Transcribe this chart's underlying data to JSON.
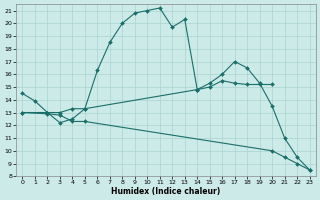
{
  "xlabel": "Humidex (Indice chaleur)",
  "bg_color": "#cceae8",
  "line_color": "#1a6e6a",
  "grid_color": "#aad4d0",
  "xlim": [
    -0.5,
    23.5
  ],
  "ylim": [
    8,
    21.5
  ],
  "xticks": [
    0,
    1,
    2,
    3,
    4,
    5,
    6,
    7,
    8,
    9,
    10,
    11,
    12,
    13,
    14,
    15,
    16,
    17,
    18,
    19,
    20,
    21,
    22,
    23
  ],
  "yticks": [
    8,
    9,
    10,
    11,
    12,
    13,
    14,
    15,
    16,
    17,
    18,
    19,
    20,
    21
  ],
  "series": [
    {
      "x": [
        0,
        1,
        2,
        3,
        4,
        5,
        6,
        7,
        8,
        9,
        10,
        11,
        12,
        13,
        14
      ],
      "y": [
        14.5,
        13.9,
        13.0,
        12.2,
        12.5,
        13.3,
        16.3,
        18.5,
        20.0,
        20.8,
        21.0,
        21.2,
        19.7,
        20.3,
        14.8
      ]
    },
    {
      "x": [
        14,
        15,
        16,
        17,
        18,
        19,
        20,
        21,
        22,
        23
      ],
      "y": [
        14.8,
        15.3,
        16.0,
        17.0,
        16.5,
        15.3,
        13.5,
        11.0,
        9.5,
        8.5
      ]
    },
    {
      "x": [
        0,
        2,
        3,
        4,
        5,
        14,
        15,
        16,
        17,
        18,
        19,
        20
      ],
      "y": [
        13.0,
        13.0,
        13.0,
        13.3,
        13.3,
        14.8,
        15.0,
        15.5,
        15.3,
        15.2,
        15.2,
        15.2
      ]
    },
    {
      "x": [
        0,
        2,
        3,
        4,
        5,
        20,
        21,
        22,
        23
      ],
      "y": [
        13.0,
        12.9,
        12.8,
        12.3,
        12.3,
        10.0,
        9.5,
        9.0,
        8.5
      ]
    }
  ]
}
